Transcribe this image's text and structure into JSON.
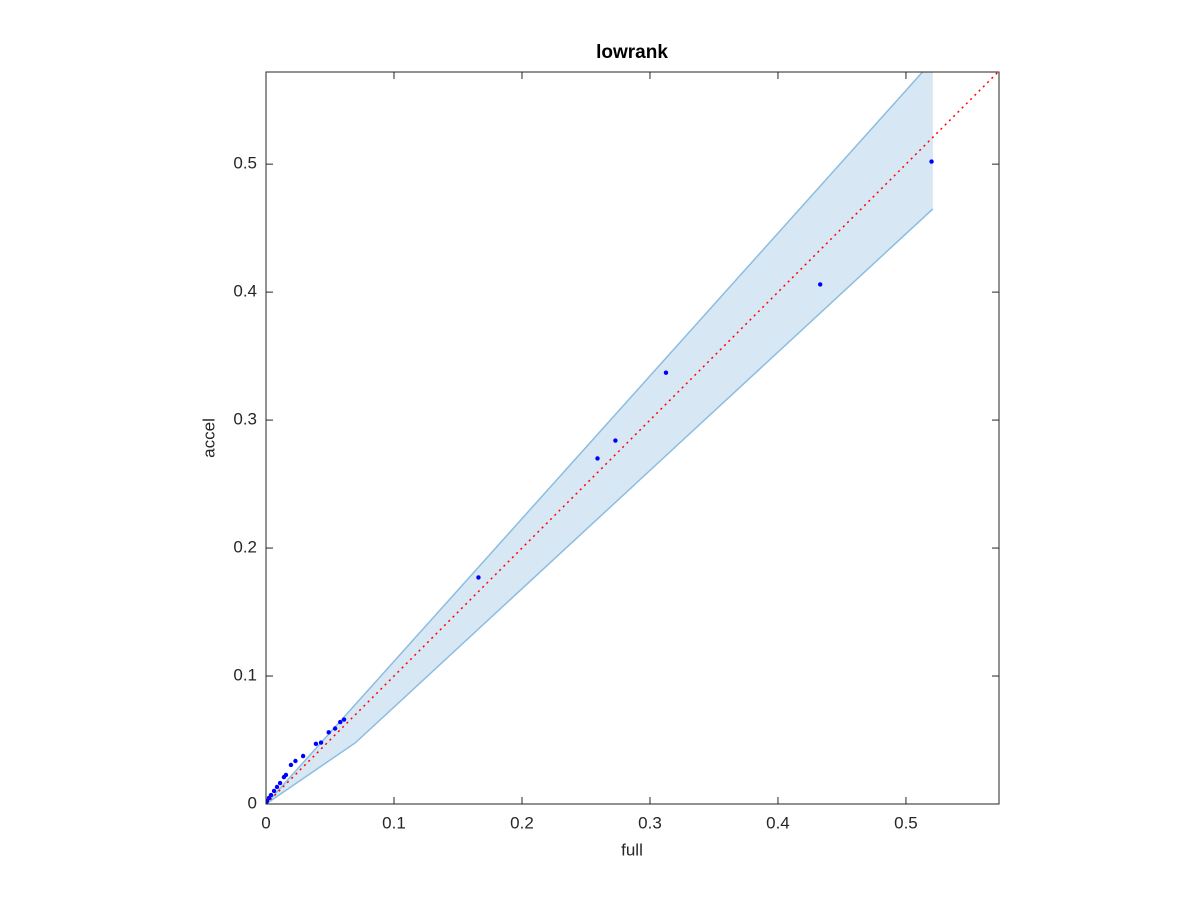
{
  "chart_data": {
    "type": "scatter",
    "title": "lowrank",
    "x_label": "full",
    "y_label": "accel",
    "x": [
      0.52,
      0.433,
      0.3125,
      0.273,
      0.259,
      0.166,
      0.061,
      0.058,
      0.054,
      0.049,
      0.043,
      0.039,
      0.029,
      0.023,
      0.0195,
      0.0156,
      0.014,
      0.011,
      0.0086,
      0.0063,
      0.0039,
      0.0023,
      0.0008,
      0
    ],
    "values": [
      0.502,
      0.406,
      0.337,
      0.284,
      0.27,
      0.177,
      0.066,
      0.064,
      0.059,
      0.056,
      0.048,
      0.047,
      0.0375,
      0.0336,
      0.0305,
      0.0227,
      0.021,
      0.0164,
      0.0133,
      0.0102,
      0.007,
      0.0047,
      0.0023,
      0.0008
    ],
    "color": "#0000ff",
    "band": {
      "x": [
        0,
        0.07,
        0.521
      ],
      "upper": [
        0,
        0.078,
        0.581
      ],
      "lower": [
        0,
        0.048,
        0.465
      ],
      "fill": "#d8e7f4",
      "edge": "#8cbde0"
    },
    "reference_color": "#ff0000",
    "xlim": [
      0,
      0.5727
    ],
    "ylim": [
      0,
      0.572
    ],
    "xticks": [
      0,
      0.1,
      0.2,
      0.3,
      0.4,
      0.5
    ],
    "yticks": [
      0,
      0.1,
      0.2,
      0.3,
      0.4,
      0.5
    ]
  }
}
